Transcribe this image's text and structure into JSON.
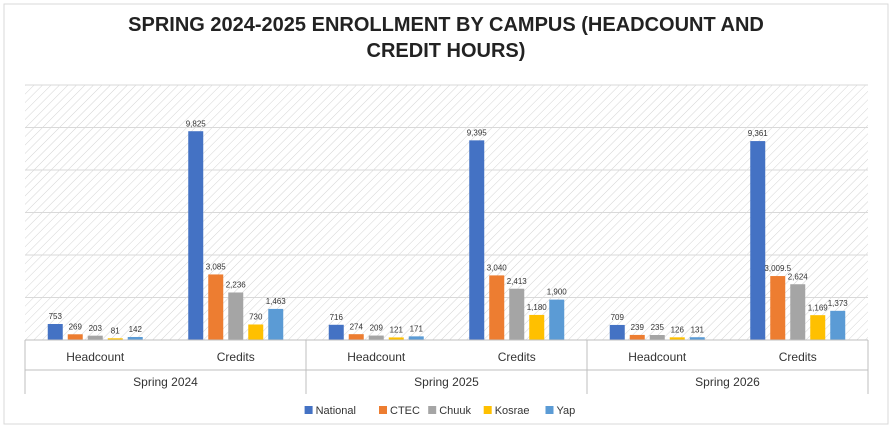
{
  "chart_data": {
    "type": "bar",
    "title": "SPRING 2024-2025 ENROLLMENT BY CAMPUS (HEADCOUNT AND CREDIT HOURS)",
    "groups": [
      "Spring 2024",
      "Spring 2025",
      "Spring 2026"
    ],
    "categories": [
      "Headcount",
      "Credits",
      "Headcount",
      "Credits",
      "Headcount",
      "Credits"
    ],
    "series": [
      {
        "name": "National",
        "color": "#4472c4",
        "values": [
          753,
          9825,
          716,
          9395,
          709,
          9361
        ],
        "value_labels": [
          "753",
          "9,825",
          "716",
          "9,395",
          "709",
          "9,361"
        ]
      },
      {
        "name": "CTEC",
        "color": "#ed7d31",
        "values": [
          269,
          3085,
          274,
          3040,
          239,
          3009.5
        ],
        "value_labels": [
          "269",
          "3,085",
          "274",
          "3,040",
          "239",
          "3,009.5"
        ]
      },
      {
        "name": "Chuuk",
        "color": "#a5a5a5",
        "values": [
          203,
          2236,
          209,
          2413,
          235,
          2624
        ],
        "value_labels": [
          "203",
          "2,236",
          "209",
          "2,413",
          "235",
          "2,624"
        ]
      },
      {
        "name": "Kosrae",
        "color": "#ffc000",
        "values": [
          81,
          730,
          121,
          1180,
          126,
          1169
        ],
        "value_labels": [
          "81",
          "730",
          "121",
          "1,180",
          "126",
          "1,169"
        ]
      },
      {
        "name": "Yap",
        "color": "#5b9bd5",
        "values": [
          142,
          1463,
          171,
          1900,
          131,
          1373
        ],
        "value_labels": [
          "142",
          "1,463",
          "171",
          "1,900",
          "131",
          "1,373"
        ]
      }
    ],
    "ylim": [
      0,
      12000
    ],
    "yticks": [
      0,
      2000,
      4000,
      6000,
      8000,
      10000,
      12000
    ],
    "grid": true,
    "legend": "bottom"
  }
}
